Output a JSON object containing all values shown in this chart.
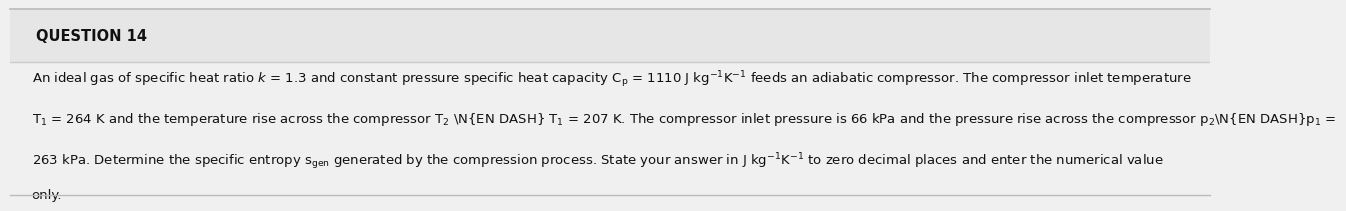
{
  "title": "QUESTION 14",
  "title_fontsize": 10.5,
  "title_fontweight": "bold",
  "body_fontsize": 9.5,
  "background_color": "#f0f0f0",
  "title_bg_color": "#e8e8e8",
  "text_color": "#111111",
  "line1": "An ideal gas of specific heat ratio k = 1.3 and constant pressure specific heat capacity Cp = 1110 J kg⁻¹K⁻¹ feeds an adiabatic compressor. The compressor inlet temperature",
  "line2": "T₁ = 264 K and the temperature rise across the compressor T₂ – T₁ = 207 K. The compressor inlet pressure is 66 kPa and the pressure rise across the compressor p₂–p₁ =",
  "line3": "263 kPa. Determine the specific entropy Sgen generated by the compression process. State your answer in J kg⁻¹K⁻¹ to zero decimal places and enter the numerical value",
  "line4": "only.",
  "border_color": "#bbbbbb",
  "sep_color": "#cccccc"
}
